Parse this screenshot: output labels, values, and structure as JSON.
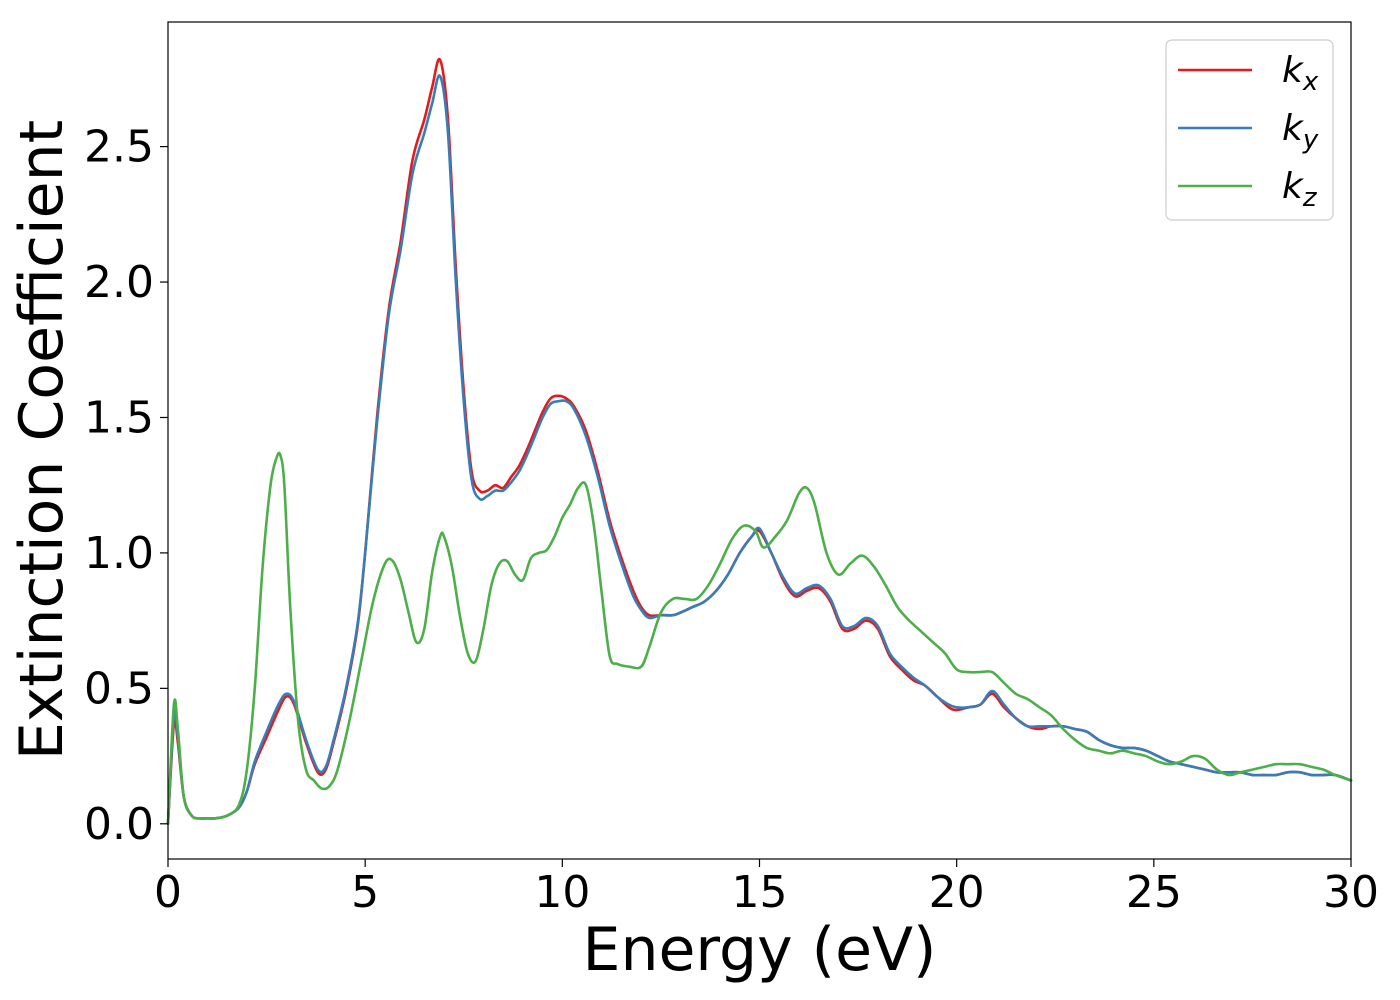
{
  "chart_data": {
    "type": "line",
    "title": "",
    "xlabel": "Energy (eV)",
    "ylabel": "Extinction Coefficient",
    "xlim": [
      0,
      30
    ],
    "ylim": [
      -0.13,
      2.96
    ],
    "xticks": [
      0,
      5,
      10,
      15,
      20,
      25,
      30
    ],
    "xtick_labels": [
      "0",
      "5",
      "10",
      "15",
      "20",
      "25",
      "30"
    ],
    "yticks": [
      0.0,
      0.5,
      1.0,
      1.5,
      2.0,
      2.5
    ],
    "ytick_labels": [
      "0.0",
      "0.5",
      "1.0",
      "1.5",
      "2.0",
      "2.5"
    ],
    "grid": false,
    "legend_position": "top-right",
    "series": [
      {
        "name": "k_x",
        "legend_base": "k",
        "legend_sub": "x",
        "color": "#e41a1c",
        "x": [
          0,
          0.15,
          0.25,
          0.4,
          0.6,
          0.8,
          1.0,
          1.2,
          1.5,
          1.8,
          2.0,
          2.2,
          2.5,
          2.8,
          3.0,
          3.2,
          3.5,
          3.8,
          4.0,
          4.2,
          4.5,
          4.8,
          5.0,
          5.3,
          5.6,
          5.9,
          6.2,
          6.5,
          6.7,
          6.9,
          7.1,
          7.3,
          7.5,
          7.7,
          7.9,
          8.1,
          8.3,
          8.5,
          8.7,
          8.9,
          9.1,
          9.3,
          9.5,
          9.7,
          9.9,
          10.1,
          10.3,
          10.6,
          10.9,
          11.2,
          11.5,
          11.8,
          12.0,
          12.2,
          12.5,
          12.8,
          13.0,
          13.3,
          13.6,
          13.9,
          14.2,
          14.5,
          14.8,
          15.0,
          15.3,
          15.6,
          15.9,
          16.2,
          16.5,
          16.8,
          17.1,
          17.4,
          17.7,
          18.0,
          18.3,
          18.6,
          18.9,
          19.2,
          19.5,
          19.8,
          20.0,
          20.3,
          20.6,
          20.9,
          21.2,
          21.5,
          21.8,
          22.1,
          22.4,
          22.7,
          23.0,
          23.3,
          23.6,
          23.9,
          24.2,
          24.5,
          24.8,
          25.1,
          25.4,
          25.7,
          26.0,
          26.3,
          26.6,
          26.9,
          27.2,
          27.5,
          27.8,
          28.1,
          28.4,
          28.7,
          29.0,
          29.3,
          29.6,
          30.0
        ],
        "y": [
          0.0,
          0.37,
          0.3,
          0.1,
          0.03,
          0.02,
          0.02,
          0.02,
          0.03,
          0.06,
          0.12,
          0.22,
          0.32,
          0.42,
          0.47,
          0.44,
          0.3,
          0.19,
          0.2,
          0.3,
          0.48,
          0.72,
          1.0,
          1.5,
          1.9,
          2.15,
          2.45,
          2.6,
          2.72,
          2.82,
          2.6,
          2.05,
          1.6,
          1.3,
          1.23,
          1.23,
          1.25,
          1.24,
          1.28,
          1.32,
          1.38,
          1.45,
          1.52,
          1.57,
          1.58,
          1.57,
          1.54,
          1.45,
          1.3,
          1.12,
          0.98,
          0.86,
          0.8,
          0.77,
          0.77,
          0.77,
          0.78,
          0.8,
          0.82,
          0.86,
          0.92,
          1.0,
          1.06,
          1.08,
          1.0,
          0.9,
          0.84,
          0.86,
          0.87,
          0.82,
          0.72,
          0.72,
          0.75,
          0.72,
          0.62,
          0.57,
          0.53,
          0.51,
          0.47,
          0.43,
          0.42,
          0.43,
          0.44,
          0.48,
          0.43,
          0.39,
          0.36,
          0.35,
          0.36,
          0.36,
          0.35,
          0.34,
          0.31,
          0.29,
          0.28,
          0.28,
          0.27,
          0.25,
          0.23,
          0.22,
          0.21,
          0.2,
          0.19,
          0.19,
          0.19,
          0.18,
          0.18,
          0.18,
          0.19,
          0.19,
          0.18,
          0.18,
          0.18,
          0.16
        ]
      },
      {
        "name": "k_y",
        "legend_base": "k",
        "legend_sub": "y",
        "color": "#377eb8",
        "x": [
          0,
          0.15,
          0.25,
          0.4,
          0.6,
          0.8,
          1.0,
          1.2,
          1.5,
          1.8,
          2.0,
          2.2,
          2.5,
          2.8,
          3.0,
          3.2,
          3.5,
          3.8,
          4.0,
          4.2,
          4.5,
          4.8,
          5.0,
          5.3,
          5.6,
          5.9,
          6.2,
          6.5,
          6.7,
          6.9,
          7.1,
          7.3,
          7.5,
          7.7,
          7.9,
          8.1,
          8.3,
          8.5,
          8.7,
          8.9,
          9.1,
          9.3,
          9.5,
          9.7,
          9.9,
          10.1,
          10.3,
          10.6,
          10.9,
          11.2,
          11.5,
          11.8,
          12.0,
          12.2,
          12.5,
          12.8,
          13.0,
          13.3,
          13.6,
          13.9,
          14.2,
          14.5,
          14.8,
          15.0,
          15.3,
          15.6,
          15.9,
          16.2,
          16.5,
          16.8,
          17.1,
          17.4,
          17.7,
          18.0,
          18.3,
          18.6,
          18.9,
          19.2,
          19.5,
          19.8,
          20.0,
          20.3,
          20.6,
          20.9,
          21.2,
          21.5,
          21.8,
          22.1,
          22.4,
          22.7,
          23.0,
          23.3,
          23.6,
          23.9,
          24.2,
          24.5,
          24.8,
          25.1,
          25.4,
          25.7,
          26.0,
          26.3,
          26.6,
          26.9,
          27.2,
          27.5,
          27.8,
          28.1,
          28.4,
          28.7,
          29.0,
          29.3,
          29.6,
          30.0
        ],
        "y": [
          0.0,
          0.4,
          0.32,
          0.1,
          0.03,
          0.02,
          0.02,
          0.02,
          0.03,
          0.06,
          0.12,
          0.23,
          0.34,
          0.44,
          0.48,
          0.45,
          0.31,
          0.2,
          0.21,
          0.31,
          0.49,
          0.73,
          1.0,
          1.48,
          1.88,
          2.12,
          2.4,
          2.55,
          2.66,
          2.76,
          2.55,
          2.0,
          1.56,
          1.27,
          1.2,
          1.21,
          1.23,
          1.23,
          1.26,
          1.3,
          1.36,
          1.43,
          1.5,
          1.55,
          1.56,
          1.56,
          1.53,
          1.43,
          1.28,
          1.1,
          0.96,
          0.84,
          0.79,
          0.76,
          0.77,
          0.77,
          0.78,
          0.8,
          0.82,
          0.86,
          0.92,
          1.0,
          1.06,
          1.09,
          1.0,
          0.91,
          0.85,
          0.87,
          0.88,
          0.83,
          0.73,
          0.73,
          0.76,
          0.73,
          0.63,
          0.58,
          0.54,
          0.51,
          0.47,
          0.44,
          0.43,
          0.43,
          0.44,
          0.49,
          0.44,
          0.39,
          0.36,
          0.36,
          0.36,
          0.36,
          0.35,
          0.34,
          0.31,
          0.29,
          0.28,
          0.28,
          0.27,
          0.25,
          0.23,
          0.22,
          0.21,
          0.2,
          0.19,
          0.19,
          0.19,
          0.18,
          0.18,
          0.18,
          0.19,
          0.19,
          0.18,
          0.18,
          0.18,
          0.16
        ]
      },
      {
        "name": "k_z",
        "legend_base": "k",
        "legend_sub": "z",
        "color": "#4daf4a",
        "x": [
          0,
          0.15,
          0.25,
          0.4,
          0.6,
          0.8,
          1.0,
          1.2,
          1.5,
          1.8,
          2.0,
          2.2,
          2.4,
          2.6,
          2.75,
          2.85,
          2.95,
          3.1,
          3.3,
          3.5,
          3.7,
          3.9,
          4.1,
          4.3,
          4.6,
          4.9,
          5.2,
          5.5,
          5.7,
          5.9,
          6.1,
          6.3,
          6.5,
          6.7,
          6.9,
          7.0,
          7.2,
          7.4,
          7.6,
          7.8,
          8.0,
          8.2,
          8.4,
          8.6,
          8.8,
          9.0,
          9.2,
          9.4,
          9.6,
          9.8,
          10.0,
          10.2,
          10.4,
          10.6,
          10.8,
          11.0,
          11.2,
          11.4,
          11.7,
          12.0,
          12.2,
          12.5,
          12.8,
          13.1,
          13.4,
          13.7,
          14.0,
          14.3,
          14.6,
          14.9,
          15.1,
          15.4,
          15.7,
          16.0,
          16.2,
          16.4,
          16.7,
          17.0,
          17.3,
          17.6,
          17.9,
          18.2,
          18.5,
          18.8,
          19.1,
          19.4,
          19.7,
          20.0,
          20.3,
          20.6,
          20.9,
          21.2,
          21.5,
          21.8,
          22.1,
          22.4,
          22.7,
          23.0,
          23.3,
          23.6,
          23.9,
          24.2,
          24.5,
          24.8,
          25.1,
          25.4,
          25.7,
          26.0,
          26.3,
          26.6,
          26.9,
          27.2,
          27.5,
          27.8,
          28.1,
          28.4,
          28.7,
          29.0,
          29.3,
          29.6,
          30.0
        ],
        "y": [
          0.0,
          0.44,
          0.35,
          0.1,
          0.03,
          0.02,
          0.02,
          0.02,
          0.03,
          0.07,
          0.2,
          0.5,
          0.95,
          1.25,
          1.35,
          1.36,
          1.25,
          0.8,
          0.38,
          0.2,
          0.16,
          0.13,
          0.14,
          0.2,
          0.38,
          0.6,
          0.82,
          0.96,
          0.97,
          0.9,
          0.78,
          0.67,
          0.72,
          0.93,
          1.06,
          1.06,
          0.95,
          0.77,
          0.63,
          0.6,
          0.72,
          0.88,
          0.96,
          0.97,
          0.92,
          0.9,
          0.98,
          1.0,
          1.01,
          1.06,
          1.13,
          1.18,
          1.24,
          1.25,
          1.1,
          0.85,
          0.62,
          0.59,
          0.58,
          0.58,
          0.65,
          0.78,
          0.83,
          0.83,
          0.83,
          0.88,
          0.96,
          1.05,
          1.1,
          1.08,
          1.02,
          1.06,
          1.12,
          1.22,
          1.24,
          1.18,
          1.0,
          0.92,
          0.96,
          0.99,
          0.95,
          0.88,
          0.8,
          0.75,
          0.71,
          0.67,
          0.63,
          0.57,
          0.56,
          0.56,
          0.56,
          0.52,
          0.48,
          0.46,
          0.43,
          0.4,
          0.35,
          0.31,
          0.28,
          0.27,
          0.26,
          0.27,
          0.26,
          0.25,
          0.23,
          0.22,
          0.23,
          0.25,
          0.24,
          0.2,
          0.18,
          0.19,
          0.2,
          0.21,
          0.22,
          0.22,
          0.22,
          0.21,
          0.2,
          0.18,
          0.16
        ]
      }
    ]
  }
}
